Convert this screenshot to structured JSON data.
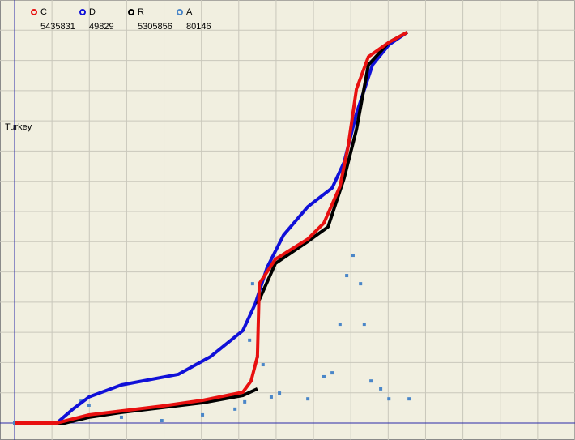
{
  "chart_data": {
    "type": "line",
    "title": "Turkey",
    "xlim": [
      0,
      15
    ],
    "ylim": [
      0,
      14
    ],
    "xticks": [
      0,
      1,
      2,
      3,
      4,
      5,
      6,
      7,
      8,
      9,
      10,
      11,
      12,
      13,
      14,
      15
    ],
    "yticks": [
      0,
      1,
      2,
      3,
      4,
      5,
      6,
      7,
      8,
      9,
      10,
      11,
      12,
      13,
      14
    ],
    "grid": true,
    "series": [
      {
        "name": "C",
        "total": "5435831",
        "color": "#e81010",
        "style": "line",
        "x": [
          0,
          1.13,
          1.99,
          2.86,
          3.94,
          5.03,
          6.11,
          6.33,
          6.5,
          6.55,
          6.98,
          7.85,
          8.28,
          8.71,
          8.93,
          9.15,
          9.47,
          10.02,
          10.51
        ],
        "values": [
          0,
          0,
          0.27,
          0.4,
          0.56,
          0.75,
          1.02,
          1.39,
          2.2,
          4.61,
          5.42,
          6.09,
          6.62,
          7.83,
          9.17,
          11.05,
          12.12,
          12.6,
          12.93
        ]
      },
      {
        "name": "D",
        "total": "49829",
        "color": "#1010d8",
        "style": "line",
        "x": [
          0,
          1.13,
          1.56,
          1.99,
          2.86,
          4.38,
          5.25,
          6.11,
          6.44,
          6.76,
          7.2,
          7.85,
          8.5,
          8.82,
          9.15,
          9.58,
          10.02,
          10.51
        ],
        "values": [
          0,
          0,
          0.46,
          0.86,
          1.26,
          1.61,
          2.2,
          3.06,
          3.94,
          5.15,
          6.22,
          7.16,
          7.78,
          8.63,
          10.24,
          11.85,
          12.52,
          12.93
        ]
      },
      {
        "name": "R",
        "total": "5305856",
        "color": "#000000",
        "style": "line",
        "x": [
          0,
          1.34,
          1.99,
          2.86,
          3.94,
          5.03,
          6.11,
          6.5,
          null,
          6.5,
          6.98,
          7.85,
          8.39,
          8.82,
          9.15,
          9.47,
          10.02,
          10.51
        ],
        "values": [
          0,
          0,
          0.19,
          0.35,
          0.51,
          0.67,
          0.91,
          1.13,
          null,
          3.94,
          5.28,
          6.01,
          6.49,
          8.1,
          9.71,
          11.85,
          12.6,
          12.93
        ]
      },
      {
        "name": "A",
        "total": "80146",
        "color": "#4a86c8",
        "style": "dots",
        "x": [
          0,
          1.13,
          1.45,
          1.78,
          1.99,
          2.21,
          2.86,
          3.94,
          5.03,
          5.9,
          6.16,
          6.29,
          6.37,
          6.5,
          6.65,
          6.87,
          7.09,
          7.85,
          8.28,
          8.5,
          8.71,
          8.89,
          9.06,
          9.26,
          9.36,
          9.54,
          9.8,
          10.02,
          10.56
        ],
        "values": [
          0,
          0,
          0.32,
          0.72,
          0.59,
          0.32,
          0.19,
          0.08,
          0.27,
          0.46,
          0.7,
          2.74,
          4.61,
          2.2,
          1.93,
          0.86,
          0.99,
          0.8,
          1.53,
          1.66,
          3.27,
          4.88,
          5.55,
          4.61,
          3.27,
          1.39,
          1.13,
          0.8,
          0.8
        ]
      }
    ]
  }
}
